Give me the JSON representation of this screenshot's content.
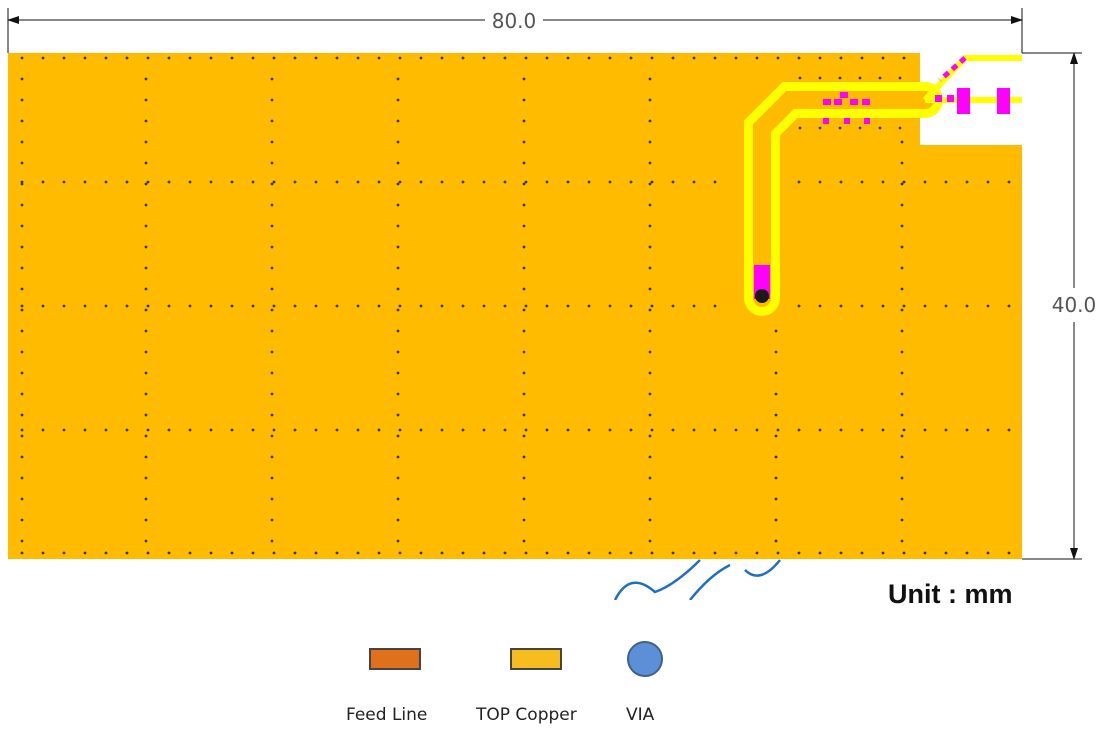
{
  "dimensions": {
    "width_label": "80.0",
    "height_label": "40.0"
  },
  "unit": {
    "label": "Unit : mm"
  },
  "legend": {
    "items": [
      {
        "label": "Feed Line",
        "color": "#e0701a",
        "shape": "rect"
      },
      {
        "label": "TOP Copper",
        "color": "#f7bd1f",
        "shape": "rect"
      },
      {
        "label": "VIA",
        "color": "#5b8fd8",
        "shape": "circle"
      }
    ]
  },
  "colors": {
    "board": "#ffbb00",
    "trace": "#ffff00",
    "pad": "#ff00ff",
    "via_dot": "#1a1a1a",
    "keepout": "#ffffff"
  }
}
